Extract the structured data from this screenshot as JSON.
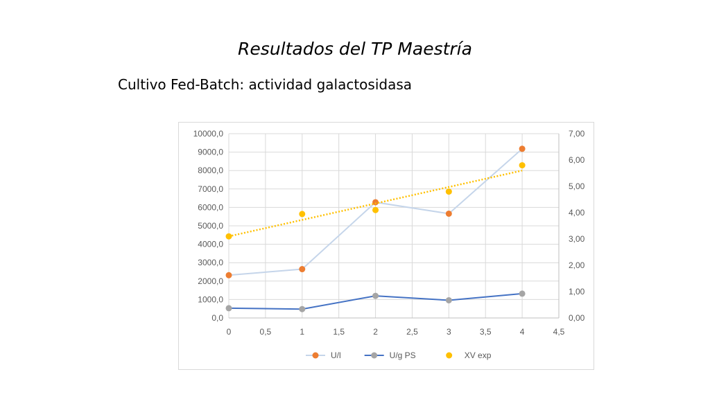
{
  "slide": {
    "title": "Resultados del TP Maestría",
    "subtitle": "Cultivo Fed-Batch: actividad galactosidasa"
  },
  "chart_data": {
    "type": "scatter",
    "x_ticks": [
      "0",
      "0,5",
      "1",
      "1,5",
      "2",
      "2,5",
      "3",
      "3,5",
      "4",
      "4,5"
    ],
    "x_tick_values": [
      0,
      0.5,
      1,
      1.5,
      2,
      2.5,
      3,
      3.5,
      4,
      4.5
    ],
    "xlim": [
      0,
      4.5
    ],
    "y_left_ticks": [
      "0,0",
      "1000,0",
      "2000,0",
      "3000,0",
      "4000,0",
      "5000,0",
      "6000,0",
      "7000,0",
      "8000,0",
      "9000,0",
      "10000,0"
    ],
    "y_left_tick_values": [
      0,
      1000,
      2000,
      3000,
      4000,
      5000,
      6000,
      7000,
      8000,
      9000,
      10000
    ],
    "ylim_left": [
      0,
      10000
    ],
    "y_right_ticks": [
      "0,00",
      "1,00",
      "2,00",
      "3,00",
      "4,00",
      "5,00",
      "6,00",
      "7,00"
    ],
    "y_right_tick_values": [
      0,
      1,
      2,
      3,
      4,
      5,
      6,
      7
    ],
    "ylim_right": [
      0,
      7
    ],
    "grid": true,
    "legend_position": "bottom",
    "series": [
      {
        "name": "U/l",
        "axis": "left",
        "x": [
          0,
          1,
          2,
          3,
          4
        ],
        "y": [
          2320,
          2650,
          6280,
          5660,
          9180
        ],
        "marker_color": "#ed7d31",
        "line_color": "#c5d5ea",
        "connect": true
      },
      {
        "name": "U/g PS",
        "axis": "left",
        "x": [
          0,
          1,
          2,
          3,
          4
        ],
        "y": [
          530,
          480,
          1200,
          960,
          1320
        ],
        "marker_color": "#a5a5a5",
        "line_color": "#4472c4",
        "connect": true
      },
      {
        "name": "XV exp",
        "axis": "right",
        "x": [
          0,
          1,
          2,
          3,
          4
        ],
        "y": [
          3.1,
          3.95,
          4.1,
          4.8,
          5.8
        ],
        "marker_color": "#ffc000",
        "connect": false,
        "trendline": {
          "type": "linear",
          "color": "#ffc000",
          "style": "dotted"
        }
      }
    ]
  }
}
